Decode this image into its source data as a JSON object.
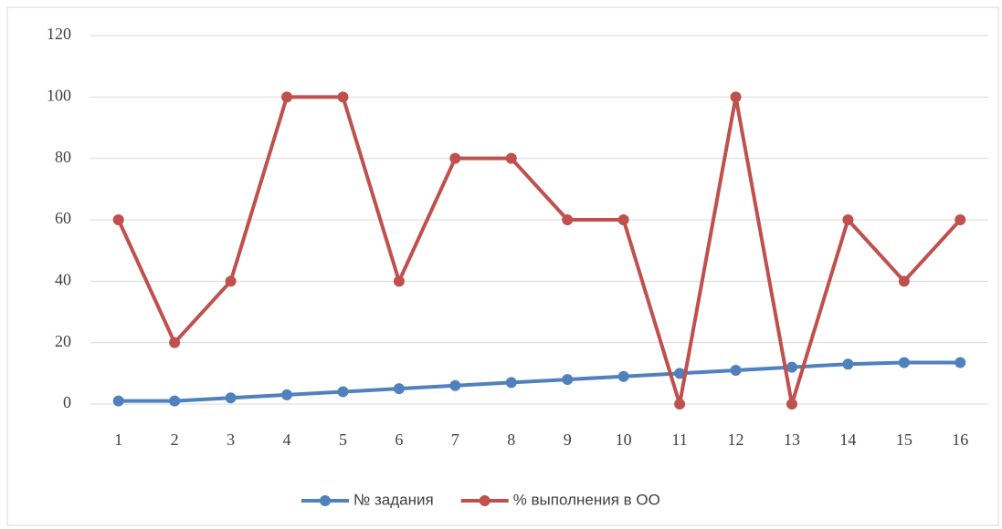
{
  "chart_data": {
    "type": "line",
    "categories": [
      "1",
      "2",
      "3",
      "4",
      "5",
      "6",
      "7",
      "8",
      "9",
      "10",
      "11",
      "12",
      "13",
      "14",
      "15",
      "16"
    ],
    "series": [
      {
        "name": "№ задания",
        "color": "#4f81bd",
        "values": [
          1,
          1,
          2,
          3,
          4,
          5,
          6,
          7,
          8,
          9,
          10,
          11,
          12,
          13,
          13.5,
          13.5
        ]
      },
      {
        "name": "% выполнения в ОО",
        "color": "#c0504d",
        "values": [
          60,
          20,
          40,
          100,
          100,
          40,
          80,
          80,
          60,
          60,
          0,
          100,
          0,
          60,
          40,
          60
        ]
      }
    ],
    "ylim": [
      0,
      120
    ],
    "yticks": [
      0,
      20,
      40,
      60,
      80,
      100,
      120
    ],
    "grid": true,
    "legend": "bottom"
  }
}
